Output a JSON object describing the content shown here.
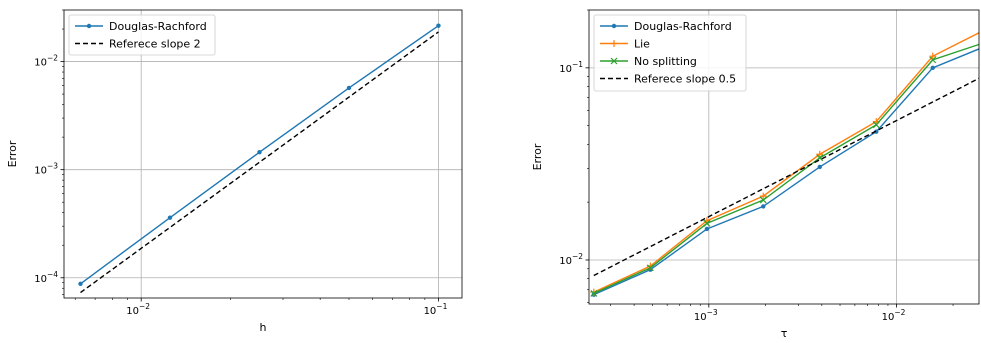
{
  "chart_data": [
    {
      "type": "line",
      "xscale": "log",
      "yscale": "log",
      "xlabel": "h",
      "ylabel": "Error",
      "xlim": [
        0.0055,
        0.12
      ],
      "ylim": [
        6.5e-05,
        0.03
      ],
      "grid": true,
      "legend_position": "top-left",
      "xticks": [
        {
          "value": 0.01,
          "base": "10",
          "exp": "−2"
        },
        {
          "value": 0.1,
          "base": "10",
          "exp": "−1"
        }
      ],
      "yticks": [
        {
          "value": 0.0001,
          "base": "10",
          "exp": "−4"
        },
        {
          "value": 0.001,
          "base": "10",
          "exp": "−3"
        },
        {
          "value": 0.01,
          "base": "10",
          "exp": "−2"
        }
      ],
      "series": [
        {
          "name": "Douglas-Rachford",
          "color": "#1f77b4",
          "style": "solid",
          "marker": "dot",
          "x": [
            0.00625,
            0.0125,
            0.025,
            0.05,
            0.1
          ],
          "y": [
            8.8e-05,
            0.00036,
            0.00145,
            0.0057,
            0.0215
          ]
        },
        {
          "name": "Referece slope 2",
          "color": "#000000",
          "style": "dashed",
          "marker": "none",
          "x": [
            0.00625,
            0.1
          ],
          "y": [
            7.3e-05,
            0.0188
          ]
        }
      ]
    },
    {
      "type": "line",
      "xscale": "log",
      "yscale": "log",
      "xlabel": "τ",
      "ylabel": "Error",
      "xlim": [
        0.00023,
        0.0275
      ],
      "ylim": [
        0.0059,
        0.2
      ],
      "grid": true,
      "legend_position": "top-left",
      "xticks": [
        {
          "value": 0.001,
          "base": "10",
          "exp": "−3"
        },
        {
          "value": 0.01,
          "base": "10",
          "exp": "−2"
        }
      ],
      "yticks": [
        {
          "value": 0.01,
          "base": "10",
          "exp": "−2"
        },
        {
          "value": 0.1,
          "base": "10",
          "exp": "−1"
        }
      ],
      "series": [
        {
          "name": "Douglas-Rachford",
          "color": "#1f77b4",
          "style": "solid",
          "marker": "dot",
          "x": [
            0.000244,
            0.000488,
            0.000977,
            0.00195,
            0.0039,
            0.0078,
            0.0156,
            0.03125
          ],
          "y": [
            0.0066,
            0.0089,
            0.0145,
            0.019,
            0.0305,
            0.0465,
            0.1,
            0.132
          ]
        },
        {
          "name": "Lie",
          "color": "#ff7f0e",
          "style": "solid",
          "marker": "plus",
          "x": [
            0.000244,
            0.000488,
            0.000977,
            0.00195,
            0.0039,
            0.0078,
            0.0156,
            0.03125
          ],
          "y": [
            0.0068,
            0.0093,
            0.016,
            0.0215,
            0.0355,
            0.0525,
            0.115,
            0.162
          ]
        },
        {
          "name": "No splitting",
          "color": "#2ca02c",
          "style": "solid",
          "marker": "x",
          "x": [
            0.000244,
            0.000488,
            0.000977,
            0.00195,
            0.0039,
            0.0078,
            0.0156,
            0.03125
          ],
          "y": [
            0.0067,
            0.0091,
            0.0155,
            0.0205,
            0.034,
            0.0505,
            0.11,
            0.138
          ]
        },
        {
          "name": "Referece slope 0.5",
          "color": "#000000",
          "style": "dashed",
          "marker": "none",
          "x": [
            0.000244,
            0.03125
          ],
          "y": [
            0.0083,
            0.094
          ]
        }
      ]
    }
  ]
}
